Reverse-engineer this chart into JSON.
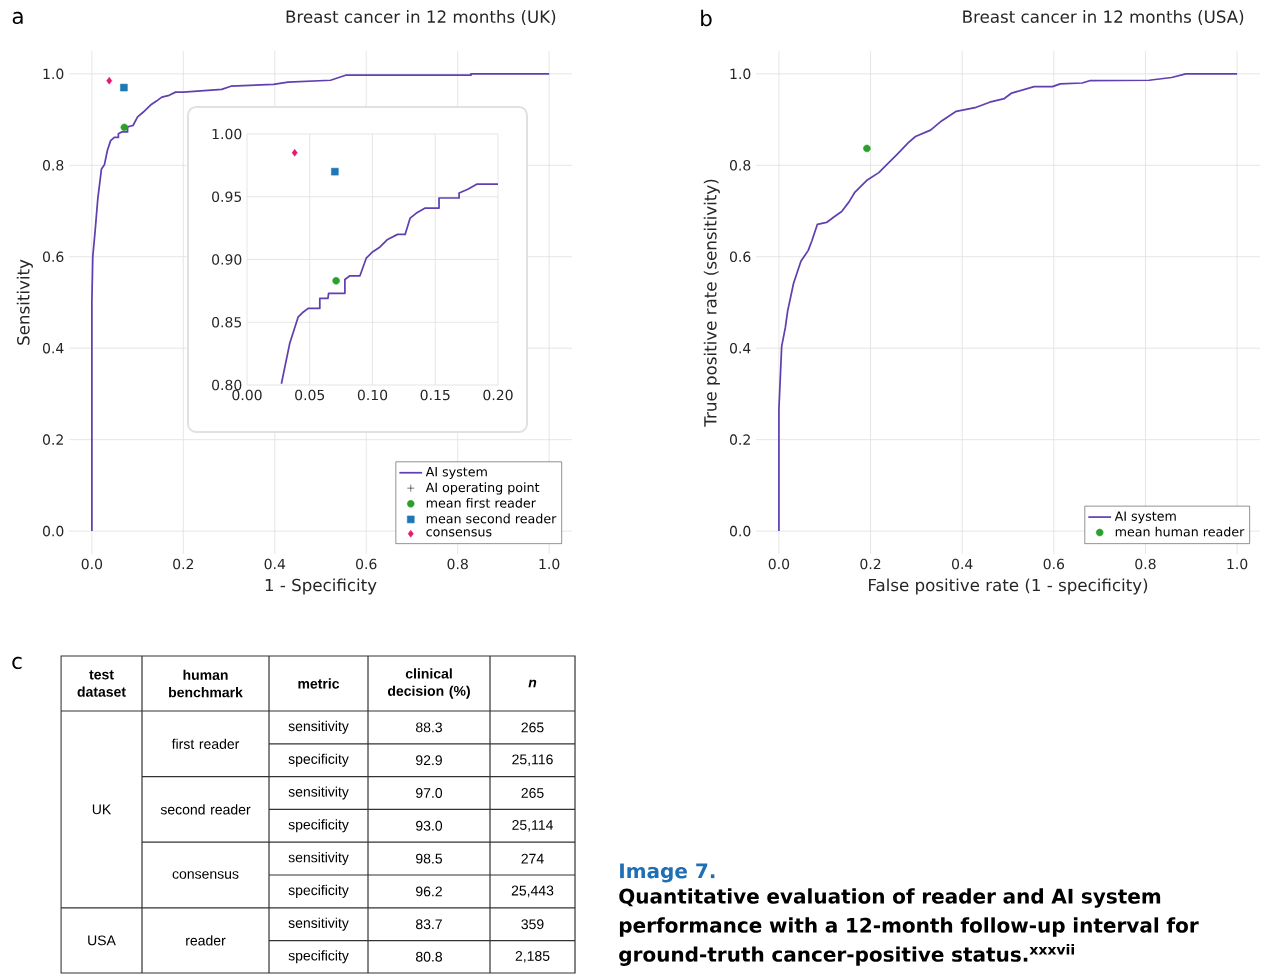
{
  "chart_data": [
    {
      "type": "line",
      "title": "Breast cancer in 12 months (UK)",
      "xlabel": "1 - Specificity",
      "ylabel": "Sensitivity",
      "annotations": [
        "a"
      ],
      "xlim": [
        -0.05,
        1.05
      ],
      "ylim": [
        -0.05,
        1.05
      ],
      "xticks": [
        {
          "value": 0,
          "label": "0.0"
        },
        0.2,
        0.4,
        0.6,
        0.8,
        {
          "value": 1,
          "label": "1.0"
        }
      ],
      "yticks": [
        {
          "value": 0,
          "label": "0.0"
        },
        0.2,
        0.4,
        0.6,
        0.8,
        {
          "value": 1,
          "label": "1.0"
        }
      ],
      "grid": true,
      "legend": "bottom right",
      "series": [
        {
          "name": "AI system",
          "type": "line",
          "color": "#6040b0",
          "x": [
            0,
            0,
            0.002,
            0.007,
            0.013,
            0.021,
            0.0274,
            0.034,
            0.041,
            0.049,
            0.058,
            0.058,
            0.065,
            0.078,
            0.078,
            0.09,
            0.1,
            0.112,
            0.13,
            0.142,
            0.153,
            0.169,
            0.183,
            0.2,
            0.284,
            0.304,
            0.397,
            0.429,
            0.522,
            0.555,
            0.829,
            0.829,
            1.0
          ],
          "values": [
            0,
            0.5,
            0.6,
            0.655,
            0.727,
            0.792,
            0.801,
            0.833,
            0.854,
            0.861,
            0.861,
            0.869,
            0.873,
            0.873,
            0.884,
            0.887,
            0.906,
            0.916,
            0.933,
            0.941,
            0.949,
            0.953,
            0.96,
            0.96,
            0.966,
            0.973,
            0.977,
            0.982,
            0.986,
            0.997,
            0.997,
            1.0,
            1.0
          ]
        },
        {
          "name": "AI operating point",
          "type": "scatter",
          "marker": "cross",
          "color": "#000000"
        },
        {
          "name": "mean first reader",
          "type": "scatter",
          "marker": "circle",
          "color": "#2ca02c",
          "x": [
            0.071
          ],
          "values": [
            0.883
          ]
        },
        {
          "name": "mean second reader",
          "type": "scatter",
          "marker": "square",
          "color": "#1f77b4",
          "x": [
            0.07
          ],
          "values": [
            0.97
          ]
        },
        {
          "name": "consensus",
          "type": "scatter",
          "marker": "diamond",
          "color": "#e6196e",
          "x": [
            0.038
          ],
          "values": [
            0.985
          ]
        }
      ]
    },
    {
      "type": "line",
      "xlim": [
        0,
        0.2
      ],
      "ylim": [
        0.8,
        1.0
      ],
      "xticks": [
        {
          "value": 0,
          "label": "0.00"
        },
        0.05,
        {
          "value": 0.1,
          "label": "0.10"
        },
        0.15,
        {
          "value": 0.2,
          "label": "0.20"
        }
      ],
      "yticks": [
        {
          "value": 0.8,
          "label": "0.80"
        },
        0.85,
        {
          "value": 0.9,
          "label": "0.90"
        },
        0.95,
        {
          "value": 1,
          "label": "1.00"
        }
      ],
      "grid": true,
      "series": [
        {
          "type": "line",
          "color": "#6040b0",
          "x": [
            0.0274,
            0.034,
            0.0407,
            0.0447,
            0.0487,
            0.058,
            0.058,
            0.0645,
            0.065,
            0.078,
            0.078,
            0.082,
            0.09,
            0.095,
            0.1,
            0.106,
            0.112,
            0.12,
            0.126,
            0.13,
            0.135,
            0.142,
            0.153,
            0.153,
            0.169,
            0.169,
            0.176,
            0.183,
            0.2
          ],
          "values": [
            0.801,
            0.833,
            0.854,
            0.858,
            0.861,
            0.861,
            0.869,
            0.869,
            0.873,
            0.873,
            0.884,
            0.887,
            0.887,
            0.901,
            0.906,
            0.91,
            0.916,
            0.92,
            0.92,
            0.933,
            0.937,
            0.941,
            0.941,
            0.949,
            0.949,
            0.953,
            0.956,
            0.96,
            0.96
          ]
        },
        {
          "type": "scatter",
          "marker": "circle",
          "color": "#2ca02c",
          "x": [
            0.071
          ],
          "values": [
            0.883
          ]
        },
        {
          "type": "scatter",
          "marker": "square",
          "color": "#1f77b4",
          "x": [
            0.07
          ],
          "values": [
            0.97
          ]
        },
        {
          "type": "scatter",
          "marker": "diamond",
          "color": "#e6196e",
          "x": [
            0.038
          ],
          "values": [
            0.985
          ]
        }
      ]
    },
    {
      "type": "line",
      "title": "Breast cancer in 12 months (USA)",
      "xlabel": "False positive rate (1 - specificity)",
      "ylabel": "True positive rate (sensitivity)",
      "annotations": [
        "b"
      ],
      "xlim": [
        -0.05,
        1.05
      ],
      "ylim": [
        -0.05,
        1.05
      ],
      "xticks": [
        {
          "value": 0,
          "label": "0.0"
        },
        0.2,
        0.4,
        0.6,
        0.8,
        {
          "value": 1,
          "label": "1.0"
        }
      ],
      "yticks": [
        {
          "value": 0,
          "label": "0.0"
        },
        0.2,
        0.4,
        0.6,
        0.8,
        {
          "value": 1,
          "label": "1.0"
        }
      ],
      "grid": true,
      "legend": "bottom right",
      "series": [
        {
          "name": "AI system",
          "type": "line",
          "color": "#6040b0",
          "x": [
            0,
            0,
            0.006,
            0.014,
            0.019,
            0.032,
            0.048,
            0.064,
            0.072,
            0.084,
            0.104,
            0.12,
            0.137,
            0.153,
            0.165,
            0.193,
            0.218,
            0.242,
            0.258,
            0.282,
            0.298,
            0.331,
            0.355,
            0.387,
            0.428,
            0.46,
            0.492,
            0.508,
            0.557,
            0.597,
            0.614,
            0.662,
            0.678,
            0.808,
            0.857,
            0.888,
            1.0
          ],
          "values": [
            0,
            0.267,
            0.404,
            0.445,
            0.481,
            0.542,
            0.59,
            0.614,
            0.635,
            0.671,
            0.675,
            0.687,
            0.699,
            0.72,
            0.74,
            0.768,
            0.784,
            0.808,
            0.824,
            0.849,
            0.863,
            0.877,
            0.897,
            0.918,
            0.926,
            0.938,
            0.946,
            0.958,
            0.972,
            0.972,
            0.978,
            0.98,
            0.985,
            0.986,
            0.992,
            1.0,
            1.0
          ]
        },
        {
          "name": "mean human reader",
          "type": "scatter",
          "marker": "circle",
          "color": "#2ca02c",
          "x": [
            0.192
          ],
          "values": [
            0.837
          ]
        }
      ]
    },
    {
      "type": "other",
      "title": "Image 7.",
      "subtitle": "Quantitative evaluation of reader and AI system performance with a 12-month follow-up interval for ground-truth cancer-positive status.$^{xxxvii}$",
      "annotations": [
        "c",
        "test dataset",
        "human benchmark",
        "metric",
        "clinical decision (%)",
        "n",
        "UK",
        "USA",
        "first reader",
        "second reader",
        "consensus",
        "reader",
        "sensitivity",
        "88.3",
        "265",
        "specificity",
        "92.9",
        "25,116",
        "sensitivity",
        "97.0",
        "265",
        "specificity",
        "93.0",
        "25,114",
        "sensitivity",
        "98.5",
        "274",
        "specificity",
        "96.2",
        "25,443",
        "sensitivity",
        "83.7",
        "359",
        "specificity",
        "80.8",
        "2,185"
      ]
    }
  ]
}
